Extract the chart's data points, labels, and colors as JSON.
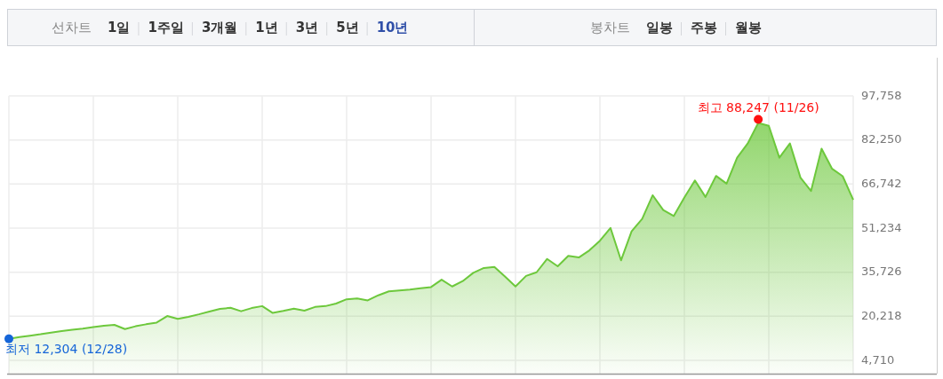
{
  "chart_data": {
    "type": "area",
    "color": "#6dc83c",
    "categories": [
      null,
      null,
      null,
      null,
      null,
      null,
      null,
      null,
      null,
      null,
      null,
      null,
      null,
      null,
      null,
      null,
      null,
      null,
      null,
      null,
      null,
      null,
      null,
      null,
      null,
      null,
      null,
      null,
      null,
      null,
      null,
      null,
      null,
      null,
      null,
      null,
      null,
      null,
      null,
      null,
      null,
      null,
      null,
      null,
      null,
      null,
      null,
      null,
      null,
      null,
      null,
      null,
      null,
      null,
      null,
      null,
      null,
      null,
      null,
      null,
      null,
      null,
      null,
      null,
      null,
      null,
      null,
      null,
      null,
      null,
      null,
      null,
      null,
      null,
      null,
      null,
      null,
      null,
      null,
      null,
      null
    ],
    "values": [
      12304,
      12900,
      13400,
      13900,
      14500,
      15000,
      15500,
      15900,
      16400,
      16900,
      17200,
      15700,
      16700,
      17400,
      18000,
      20300,
      19300,
      20000,
      20900,
      21900,
      22800,
      23200,
      22000,
      23100,
      23800,
      21400,
      22100,
      22900,
      22200,
      23500,
      23800,
      24700,
      26200,
      26500,
      25800,
      27600,
      29000,
      29300,
      29600,
      30100,
      30500,
      33100,
      30700,
      32600,
      35500,
      37200,
      37600,
      34200,
      30700,
      34400,
      35700,
      40400,
      37800,
      41500,
      40900,
      43400,
      46800,
      51300,
      39900,
      50100,
      54500,
      62800,
      57600,
      55500,
      62000,
      68000,
      62200,
      69600,
      66900,
      76000,
      81000,
      88247,
      87200,
      76000,
      81000,
      69000,
      64300,
      79200,
      72100,
      69500,
      61200
    ],
    "ylim": [
      4710,
      97758
    ],
    "yticks": [
      {
        "value": 4710,
        "label": "4,710"
      },
      {
        "value": 20218,
        "label": "20,218"
      },
      {
        "value": 35726,
        "label": "35,726"
      },
      {
        "value": 51234,
        "label": "51,234"
      },
      {
        "value": 66742,
        "label": "66,742"
      },
      {
        "value": 82250,
        "label": "82,250"
      },
      {
        "value": 97758,
        "label": "97,758"
      }
    ],
    "tick_labels": "y",
    "grid": true,
    "annotations": [
      "선차트",
      "1일",
      "1주일",
      "3개월",
      "1년",
      "3년",
      "5년",
      "10년",
      "봉차트",
      "일봉",
      "주봉",
      "월봉",
      {
        "text": "최고 88,247 (11/26)",
        "y": 88247
      },
      "최저 12,304 (12/28)"
    ]
  }
}
